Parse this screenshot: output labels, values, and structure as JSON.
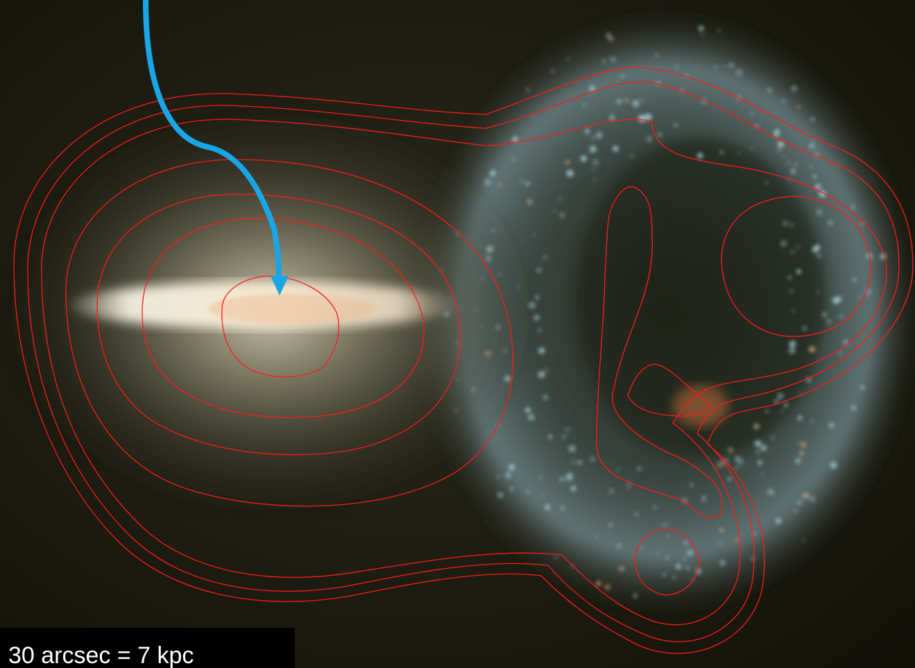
{
  "image": {
    "description_type": "astronomical composite image with red contour overlay",
    "contour_color": "#ff1a1a",
    "arrow_color": "#18a6e6",
    "background_color": "#1b1a12"
  },
  "scale_bar": {
    "label": "30 arcsec = 7  kpc"
  }
}
